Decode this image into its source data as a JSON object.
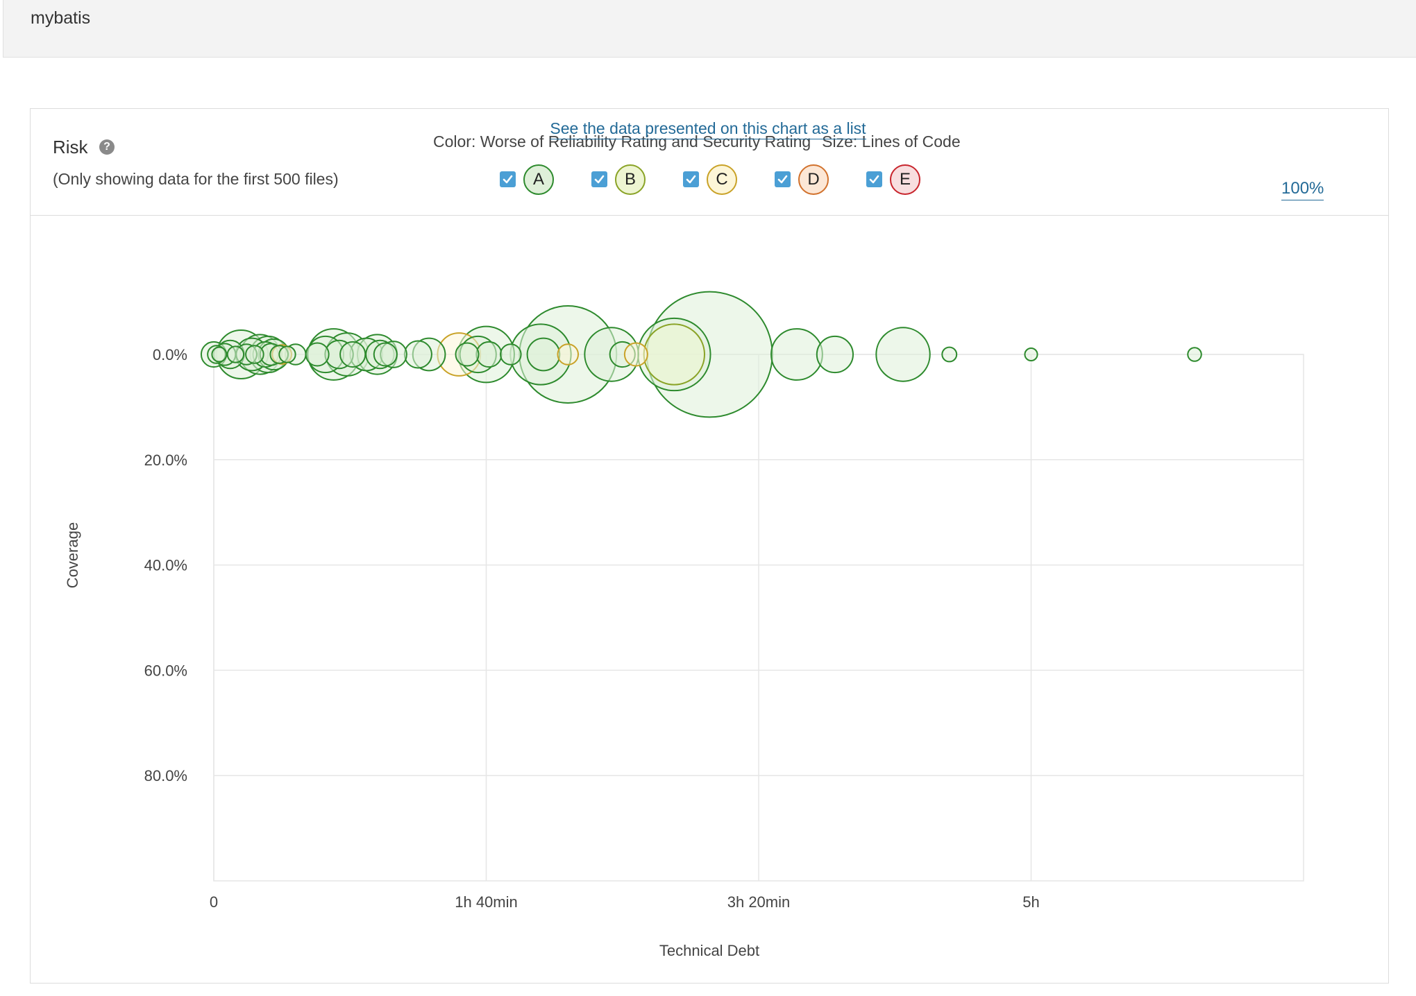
{
  "project": {
    "title": "mybatis"
  },
  "widget": {
    "title": "Risk",
    "subtitle": "(Only showing data for the first 500 files)",
    "color_label": "Color: Worse of Reliability Rating and Security Rating",
    "size_label": "Size: Lines of Code",
    "ratings": [
      {
        "label": "A",
        "checked": true,
        "fill": "#dff0d9",
        "stroke": "#2d8a2d"
      },
      {
        "label": "B",
        "checked": true,
        "fill": "#eef5d2",
        "stroke": "#8aa326"
      },
      {
        "label": "C",
        "checked": true,
        "fill": "#fdf6d8",
        "stroke": "#c9a227"
      },
      {
        "label": "D",
        "checked": true,
        "fill": "#fce7d6",
        "stroke": "#d1712c"
      },
      {
        "label": "E",
        "checked": true,
        "fill": "#f8dedf",
        "stroke": "#c8242c"
      }
    ],
    "list_link": "See the data presented on this chart as a list",
    "zoom_label": "100%"
  },
  "chart_data": {
    "type": "scatter",
    "xlabel": "Technical Debt",
    "ylabel": "Coverage",
    "x_unit": "minutes",
    "xlim": [
      0,
      400
    ],
    "ylim": [
      0,
      100
    ],
    "y_inverted": true,
    "x_ticks": [
      {
        "value": 0,
        "label": "0"
      },
      {
        "value": 100,
        "label": "1h 40min"
      },
      {
        "value": 200,
        "label": "3h 20min"
      },
      {
        "value": 300,
        "label": "5h"
      }
    ],
    "y_ticks": [
      {
        "value": 0,
        "label": "0.0%"
      },
      {
        "value": 20,
        "label": "20.0%"
      },
      {
        "value": 40,
        "label": "40.0%"
      },
      {
        "value": 60,
        "label": "60.0%"
      },
      {
        "value": 80,
        "label": "80.0%"
      }
    ],
    "grid": true,
    "points": [
      {
        "x": 0,
        "y": 0,
        "size": 120,
        "rating": "A"
      },
      {
        "x": 1,
        "y": 0,
        "size": 60,
        "rating": "A"
      },
      {
        "x": 2,
        "y": 0,
        "size": 40,
        "rating": "A"
      },
      {
        "x": 4,
        "y": 0,
        "size": 90,
        "rating": "A"
      },
      {
        "x": 6,
        "y": 0,
        "size": 150,
        "rating": "A"
      },
      {
        "x": 8,
        "y": 0,
        "size": 50,
        "rating": "A"
      },
      {
        "x": 10,
        "y": 0,
        "size": 450,
        "rating": "A"
      },
      {
        "x": 12,
        "y": 0,
        "size": 80,
        "rating": "A"
      },
      {
        "x": 14,
        "y": 0,
        "size": 200,
        "rating": "A"
      },
      {
        "x": 15,
        "y": 0,
        "size": 60,
        "rating": "A"
      },
      {
        "x": 17,
        "y": 0,
        "size": 300,
        "rating": "A"
      },
      {
        "x": 19,
        "y": 0,
        "size": 120,
        "rating": "A"
      },
      {
        "x": 20,
        "y": 0,
        "size": 250,
        "rating": "A"
      },
      {
        "x": 21,
        "y": 0,
        "size": 90,
        "rating": "A"
      },
      {
        "x": 25,
        "y": 0,
        "size": 70,
        "rating": "C"
      },
      {
        "x": 22,
        "y": 0,
        "size": 180,
        "rating": "A"
      },
      {
        "x": 24,
        "y": 0,
        "size": 60,
        "rating": "A"
      },
      {
        "x": 27,
        "y": 0,
        "size": 50,
        "rating": "A"
      },
      {
        "x": 30,
        "y": 0,
        "size": 80,
        "rating": "A"
      },
      {
        "x": 38,
        "y": 0,
        "size": 100,
        "rating": "A"
      },
      {
        "x": 41,
        "y": 0,
        "size": 250,
        "rating": "A"
      },
      {
        "x": 44,
        "y": 0,
        "size": 500,
        "rating": "A"
      },
      {
        "x": 46,
        "y": 0,
        "size": 150,
        "rating": "A"
      },
      {
        "x": 49,
        "y": 0,
        "size": 350,
        "rating": "A"
      },
      {
        "x": 51,
        "y": 0,
        "size": 120,
        "rating": "A"
      },
      {
        "x": 56,
        "y": 0,
        "size": 200,
        "rating": "A"
      },
      {
        "x": 60,
        "y": 0,
        "size": 300,
        "rating": "A"
      },
      {
        "x": 61,
        "y": 0,
        "size": 150,
        "rating": "A"
      },
      {
        "x": 63,
        "y": 0,
        "size": 100,
        "rating": "A"
      },
      {
        "x": 66,
        "y": 0,
        "size": 130,
        "rating": "A"
      },
      {
        "x": 75,
        "y": 0,
        "size": 140,
        "rating": "A"
      },
      {
        "x": 79,
        "y": 0,
        "size": 200,
        "rating": "A"
      },
      {
        "x": 90,
        "y": 0,
        "size": 350,
        "rating": "C"
      },
      {
        "x": 93,
        "y": 0,
        "size": 100,
        "rating": "A"
      },
      {
        "x": 97,
        "y": 0,
        "size": 250,
        "rating": "A"
      },
      {
        "x": 100,
        "y": 0,
        "size": 600,
        "rating": "A"
      },
      {
        "x": 101,
        "y": 0,
        "size": 120,
        "rating": "A"
      },
      {
        "x": 109,
        "y": 0,
        "size": 80,
        "rating": "A"
      },
      {
        "x": 120,
        "y": 0,
        "size": 700,
        "rating": "A"
      },
      {
        "x": 121,
        "y": 0,
        "size": 200,
        "rating": "A"
      },
      {
        "x": 130,
        "y": 0,
        "size": 1800,
        "rating": "A"
      },
      {
        "x": 130,
        "y": 0,
        "size": 80,
        "rating": "C"
      },
      {
        "x": 146,
        "y": 0,
        "size": 550,
        "rating": "A"
      },
      {
        "x": 150,
        "y": 0,
        "size": 120,
        "rating": "A"
      },
      {
        "x": 155,
        "y": 0,
        "size": 100,
        "rating": "C"
      },
      {
        "x": 169,
        "y": 0,
        "size": 1000,
        "rating": "A"
      },
      {
        "x": 169,
        "y": 0,
        "size": 700,
        "rating": "B"
      },
      {
        "x": 182,
        "y": 0,
        "size": 3000,
        "rating": "A"
      },
      {
        "x": 214,
        "y": 0,
        "size": 500,
        "rating": "A"
      },
      {
        "x": 228,
        "y": 0,
        "size": 250,
        "rating": "A"
      },
      {
        "x": 253,
        "y": 0,
        "size": 550,
        "rating": "A"
      },
      {
        "x": 270,
        "y": 0,
        "size": 40,
        "rating": "A"
      },
      {
        "x": 300,
        "y": 0,
        "size": 30,
        "rating": "A"
      },
      {
        "x": 360,
        "y": 0,
        "size": 35,
        "rating": "A"
      }
    ]
  }
}
